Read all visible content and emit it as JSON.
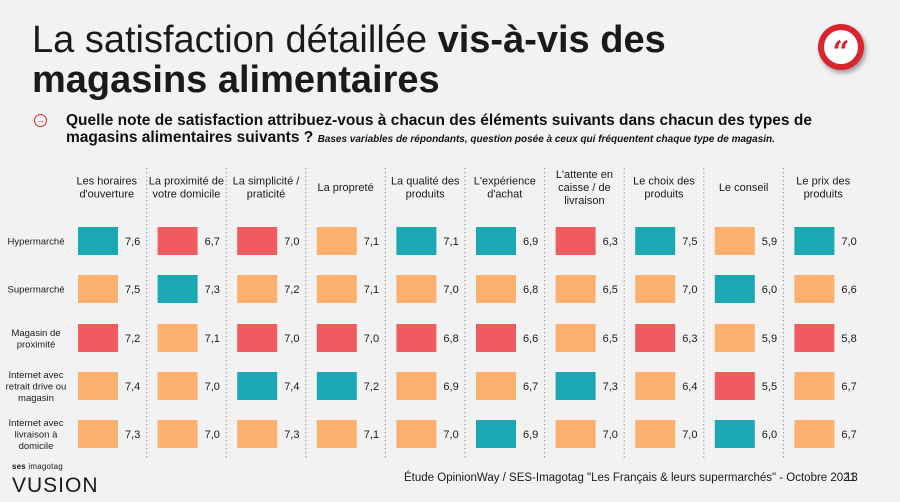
{
  "header": {
    "title_regular": "La satisfaction détaillée ",
    "title_bold": "vis-à-vis des magasins alimentaires",
    "quote_glyph": "“"
  },
  "question": {
    "text": "Quelle note de satisfaction attribuez-vous à chacun des éléments suivants dans chacun des types de magasins alimentaires suivants ?",
    "note": "Bases variables de répondants, question posée à ceux qui fréquentent chaque type de magasin.",
    "arrow_glyph": "→"
  },
  "colors": {
    "teal": "#1aa8b3",
    "orange": "#fbb06e",
    "red": "#ef5b5e",
    "accent": "#d9252e"
  },
  "chart_data": {
    "type": "table",
    "columns": [
      [
        "Les horaires",
        "d'ouverture"
      ],
      [
        "La proximité de",
        "votre domicile"
      ],
      [
        "La simplicité /",
        "praticité"
      ],
      [
        "La propreté"
      ],
      [
        "La qualité des",
        "produits"
      ],
      [
        "L'expérience",
        "d'achat"
      ],
      [
        "L'attente en",
        "caisse / de",
        "livraison"
      ],
      [
        "Le choix des",
        "produits"
      ],
      [
        "Le conseil"
      ],
      [
        "Le prix des",
        "produits"
      ]
    ],
    "rows": [
      {
        "label": [
          "Hypermarché"
        ],
        "values": [
          "7,6",
          "6,7",
          "7,0",
          "7,1",
          "7,1",
          "6,9",
          "6,3",
          "7,5",
          "5,9",
          "7,0"
        ],
        "colors": [
          "teal",
          "red",
          "red",
          "orange",
          "teal",
          "teal",
          "red",
          "teal",
          "orange",
          "teal"
        ]
      },
      {
        "label": [
          "Supermarché"
        ],
        "values": [
          "7,5",
          "7,3",
          "7,2",
          "7,1",
          "7,0",
          "6,8",
          "6,5",
          "7,0",
          "6,0",
          "6,6"
        ],
        "colors": [
          "orange",
          "teal",
          "orange",
          "orange",
          "orange",
          "orange",
          "orange",
          "orange",
          "teal",
          "orange"
        ]
      },
      {
        "label": [
          "Magasin de",
          "proximité"
        ],
        "values": [
          "7,2",
          "7,1",
          "7,0",
          "7,0",
          "6,8",
          "6,6",
          "6,5",
          "6,3",
          "5,9",
          "5,8"
        ],
        "colors": [
          "red",
          "orange",
          "red",
          "red",
          "red",
          "red",
          "orange",
          "red",
          "orange",
          "red"
        ]
      },
      {
        "label": [
          "Internet avec",
          "retrait drive ou",
          "magasin"
        ],
        "values": [
          "7,4",
          "7,0",
          "7,4",
          "7,2",
          "6,9",
          "6,7",
          "7,3",
          "6,4",
          "5,5",
          "6,7"
        ],
        "colors": [
          "orange",
          "orange",
          "teal",
          "teal",
          "orange",
          "orange",
          "teal",
          "orange",
          "red",
          "orange"
        ]
      },
      {
        "label": [
          "Internet avec",
          "livraison à",
          "domicile"
        ],
        "values": [
          "7,3",
          "7,0",
          "7,3",
          "7,1",
          "7,0",
          "6,9",
          "7,0",
          "7,0",
          "6,0",
          "6,7"
        ],
        "colors": [
          "orange",
          "orange",
          "orange",
          "orange",
          "orange",
          "teal",
          "orange",
          "orange",
          "teal",
          "orange"
        ]
      }
    ]
  },
  "footer": {
    "source": "Étude OpinionWay / SES-Imagotag \"Les Français & leurs supermarchés\" - Octobre 2021",
    "page_number": "13",
    "logo_small_bold": "ses",
    "logo_small_rest": " imagotag",
    "logo_main": "VUSION"
  }
}
